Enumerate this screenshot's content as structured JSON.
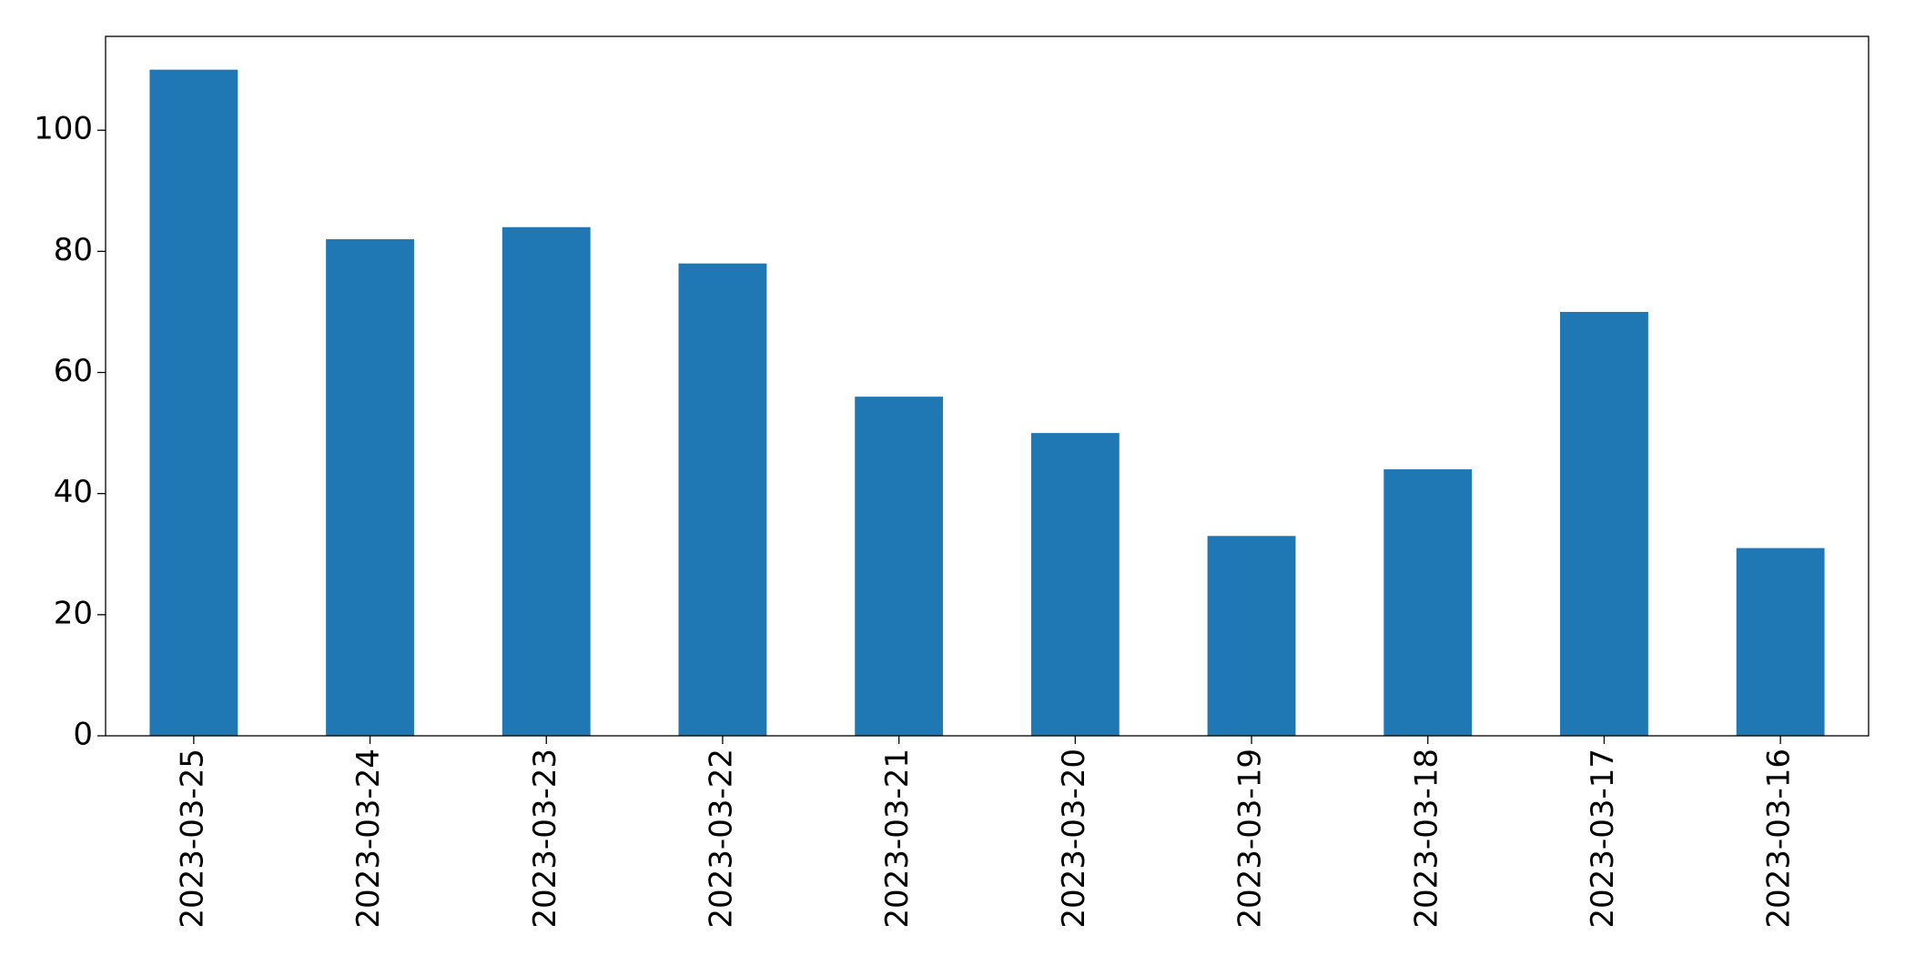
{
  "chart_data": {
    "type": "bar",
    "categories": [
      "2023-03-25",
      "2023-03-24",
      "2023-03-23",
      "2023-03-22",
      "2023-03-21",
      "2023-03-20",
      "2023-03-19",
      "2023-03-18",
      "2023-03-17",
      "2023-03-16"
    ],
    "values": [
      110,
      82,
      84,
      78,
      56,
      50,
      33,
      44,
      70,
      31
    ],
    "color": "#1f77b4",
    "ylim": [
      0,
      115.5
    ],
    "yticks": [
      0,
      20,
      40,
      60,
      80,
      100
    ],
    "grid": false
  }
}
